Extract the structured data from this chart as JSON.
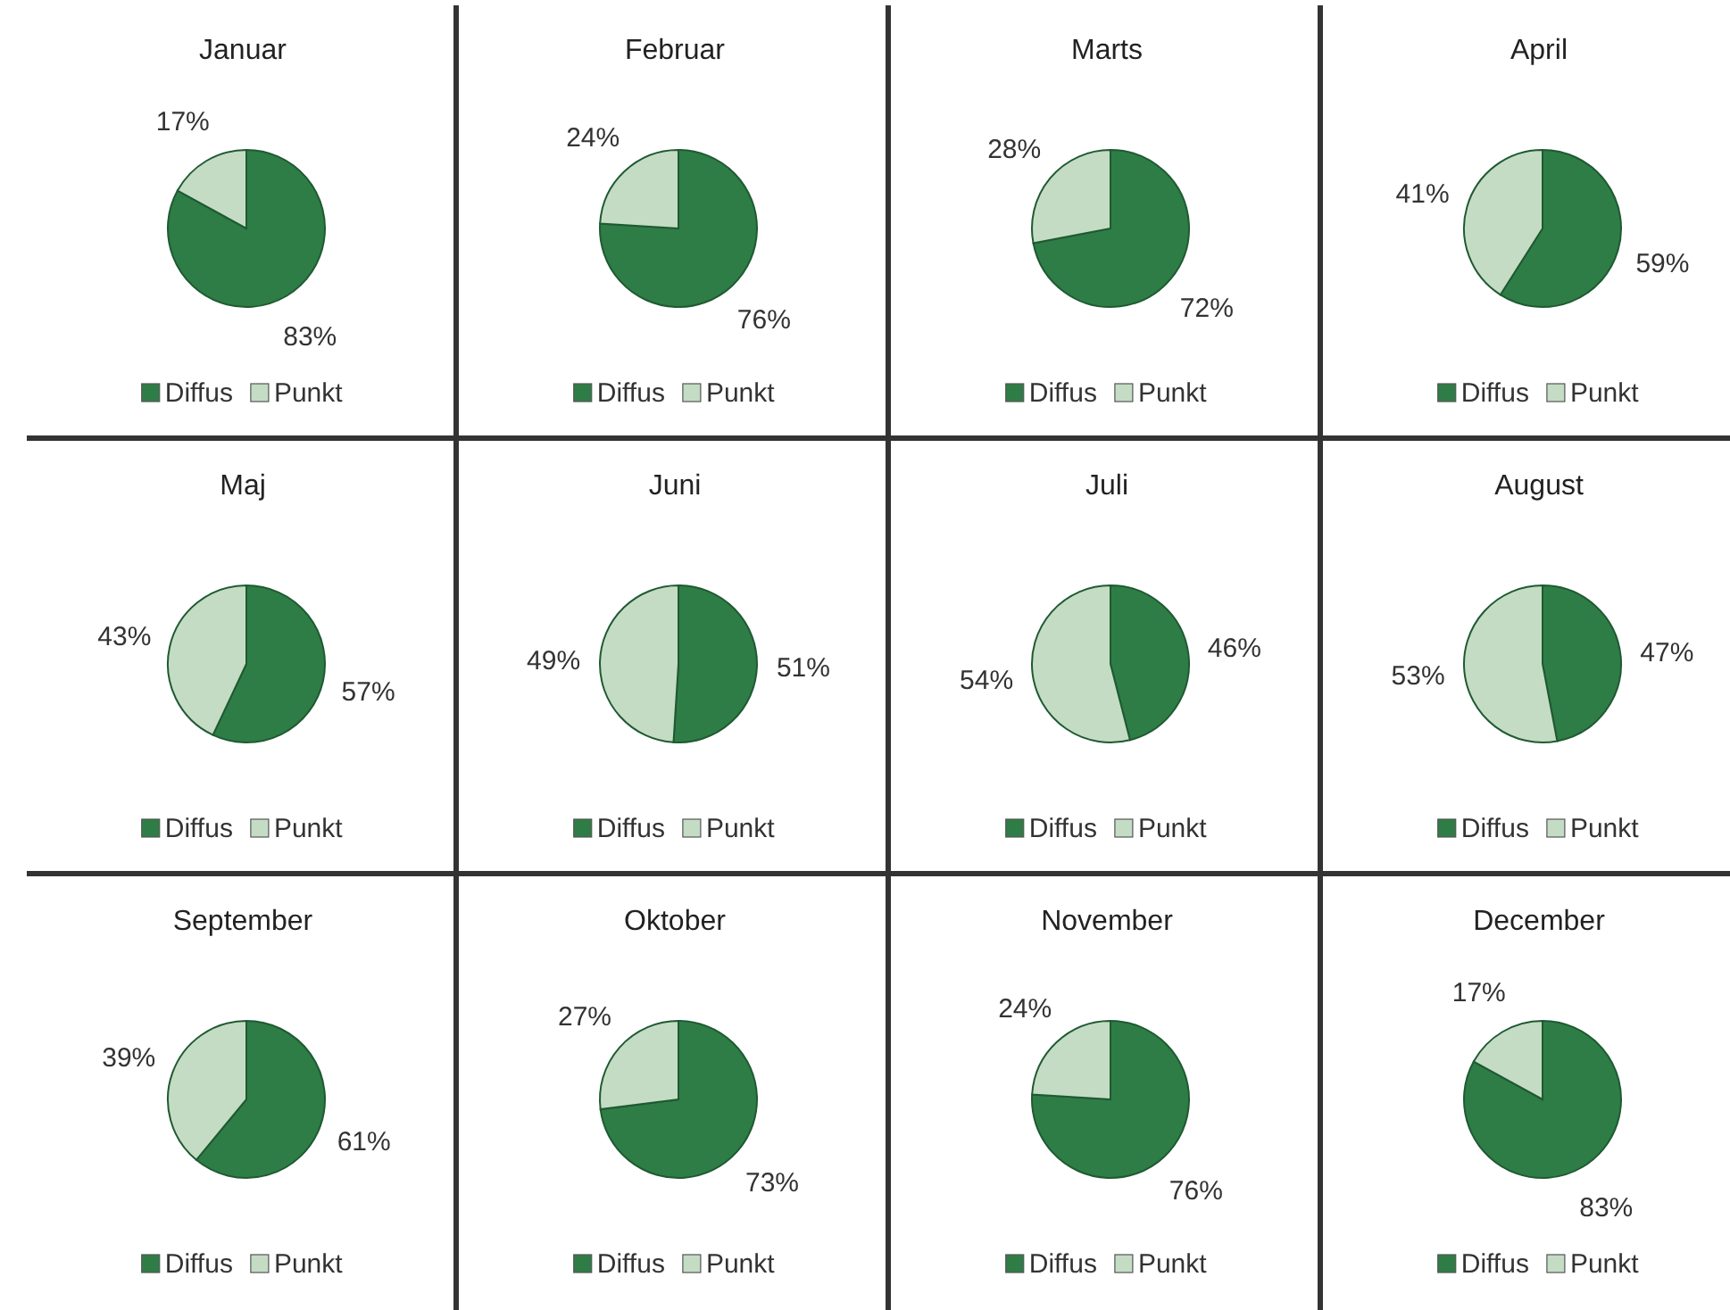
{
  "chart_data": [
    {
      "type": "pie",
      "title": "Januar",
      "categories": [
        "Diffus",
        "Punkt"
      ],
      "values": [
        83,
        17
      ],
      "value_labels": [
        "83%",
        "17%"
      ],
      "colors": [
        "#2e7d46",
        "#c4dcc4"
      ],
      "legend": "bottom"
    },
    {
      "type": "pie",
      "title": "Februar",
      "categories": [
        "Diffus",
        "Punkt"
      ],
      "values": [
        76,
        24
      ],
      "value_labels": [
        "76%",
        "24%"
      ],
      "colors": [
        "#2e7d46",
        "#c4dcc4"
      ],
      "legend": "bottom"
    },
    {
      "type": "pie",
      "title": "Marts",
      "categories": [
        "Diffus",
        "Punkt"
      ],
      "values": [
        72,
        28
      ],
      "value_labels": [
        "72%",
        "28%"
      ],
      "colors": [
        "#2e7d46",
        "#c4dcc4"
      ],
      "legend": "bottom"
    },
    {
      "type": "pie",
      "title": "April",
      "categories": [
        "Diffus",
        "Punkt"
      ],
      "values": [
        59,
        41
      ],
      "value_labels": [
        "59%",
        "41%"
      ],
      "colors": [
        "#2e7d46",
        "#c4dcc4"
      ],
      "legend": "bottom"
    },
    {
      "type": "pie",
      "title": "Maj",
      "categories": [
        "Diffus",
        "Punkt"
      ],
      "values": [
        57,
        43
      ],
      "value_labels": [
        "57%",
        "43%"
      ],
      "colors": [
        "#2e7d46",
        "#c4dcc4"
      ],
      "legend": "bottom"
    },
    {
      "type": "pie",
      "title": "Juni",
      "categories": [
        "Diffus",
        "Punkt"
      ],
      "values": [
        51,
        49
      ],
      "value_labels": [
        "51%",
        "49%"
      ],
      "colors": [
        "#2e7d46",
        "#c4dcc4"
      ],
      "legend": "bottom"
    },
    {
      "type": "pie",
      "title": "Juli",
      "categories": [
        "Diffus",
        "Punkt"
      ],
      "values": [
        46,
        54
      ],
      "value_labels": [
        "46%",
        "54%"
      ],
      "colors": [
        "#2e7d46",
        "#c4dcc4"
      ],
      "legend": "bottom"
    },
    {
      "type": "pie",
      "title": "August",
      "categories": [
        "Diffus",
        "Punkt"
      ],
      "values": [
        47,
        53
      ],
      "value_labels": [
        "47%",
        "53%"
      ],
      "colors": [
        "#2e7d46",
        "#c4dcc4"
      ],
      "legend": "bottom"
    },
    {
      "type": "pie",
      "title": "September",
      "categories": [
        "Diffus",
        "Punkt"
      ],
      "values": [
        61,
        39
      ],
      "value_labels": [
        "61%",
        "39%"
      ],
      "colors": [
        "#2e7d46",
        "#c4dcc4"
      ],
      "legend": "bottom"
    },
    {
      "type": "pie",
      "title": "Oktober",
      "categories": [
        "Diffus",
        "Punkt"
      ],
      "values": [
        73,
        27
      ],
      "value_labels": [
        "73%",
        "27%"
      ],
      "colors": [
        "#2e7d46",
        "#c4dcc4"
      ],
      "legend": "bottom"
    },
    {
      "type": "pie",
      "title": "November",
      "categories": [
        "Diffus",
        "Punkt"
      ],
      "values": [
        76,
        24
      ],
      "value_labels": [
        "76%",
        "24%"
      ],
      "colors": [
        "#2e7d46",
        "#c4dcc4"
      ],
      "legend": "bottom"
    },
    {
      "type": "pie",
      "title": "December",
      "categories": [
        "Diffus",
        "Punkt"
      ],
      "values": [
        83,
        17
      ],
      "value_labels": [
        "83%",
        "17%"
      ],
      "colors": [
        "#2e7d46",
        "#c4dcc4"
      ],
      "legend": "bottom"
    }
  ]
}
